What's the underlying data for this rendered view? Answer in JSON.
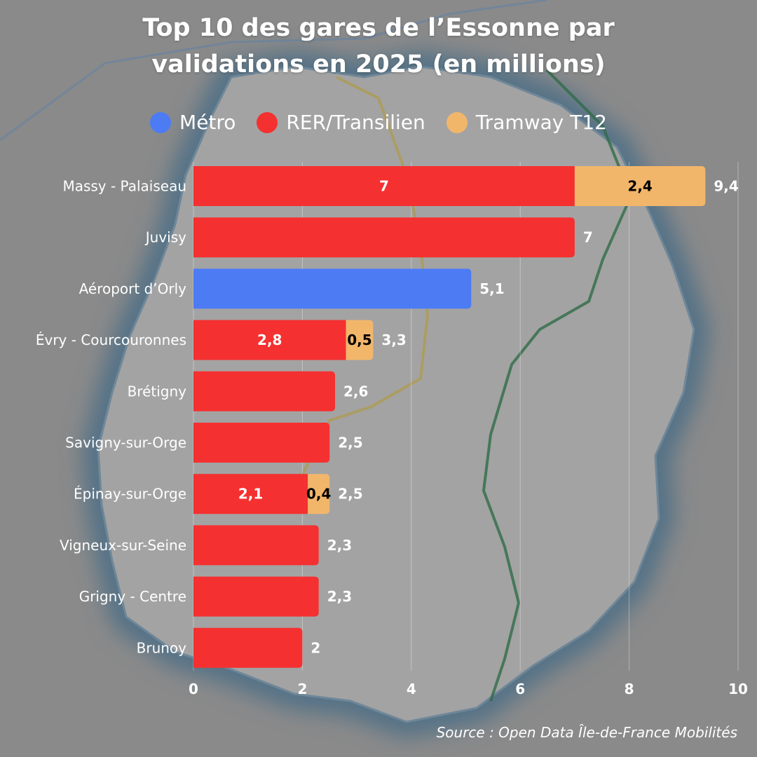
{
  "title_lines": [
    "Top 10 des gares de l’Essonne par",
    "validations en 2025 (en millions)"
  ],
  "source": "Source : Open Data Île-de-France Mobilités",
  "colors": {
    "metro": "#4c7bf4",
    "rer": "#f53030",
    "tram": "#f2b66b",
    "background": "#8a8a8a",
    "map_fill": "#a3a3a3",
    "map_glow": "#4f6f86"
  },
  "legend": [
    {
      "key": "metro",
      "label": "Métro"
    },
    {
      "key": "rer",
      "label": "RER/Transilien"
    },
    {
      "key": "tram",
      "label": "Tramway T12"
    }
  ],
  "chart_data": {
    "type": "bar",
    "orientation": "horizontal",
    "stacked": true,
    "title": "Top 10 des gares de l’Essonne par validations en 2025 (en millions)",
    "categories": [
      "Massy - Palaiseau",
      "Juvisy",
      "Aéroport d’Orly",
      "Évry - Courcouronnes",
      "Brétigny",
      "Savigny-sur-Orge",
      "Épinay-sur-Orge",
      "Vigneux-sur-Seine",
      "Grigny - Centre",
      "Brunoy"
    ],
    "series": [
      {
        "name": "Métro",
        "key": "metro",
        "values": [
          0,
          0,
          5.1,
          0,
          0,
          0,
          0,
          0,
          0,
          0
        ],
        "segment_labels": [
          "",
          "",
          "",
          "",
          "",
          "",
          "",
          "",
          "",
          ""
        ]
      },
      {
        "name": "RER/Transilien",
        "key": "rer",
        "values": [
          7,
          7,
          0,
          2.8,
          2.6,
          2.5,
          2.1,
          2.3,
          2.3,
          2
        ],
        "segment_labels": [
          "7",
          "",
          "",
          "2,8",
          "",
          "",
          "2,1",
          "",
          "",
          ""
        ]
      },
      {
        "name": "Tramway T12",
        "key": "tram",
        "values": [
          2.4,
          0,
          0,
          0.5,
          0,
          0,
          0.4,
          0,
          0,
          0
        ],
        "segment_labels": [
          "2,4",
          "",
          "",
          "0,5",
          "",
          "",
          "0,4",
          "",
          "",
          ""
        ]
      }
    ],
    "total_labels": [
      "9,4",
      "7",
      "5,1",
      "3,3",
      "2,6",
      "2,5",
      "2,5",
      "2,3",
      "2,3",
      "2"
    ],
    "xlim": [
      0,
      10
    ],
    "xticks": [
      0,
      2,
      4,
      6,
      8,
      10
    ],
    "xtick_labels": [
      "0",
      "2",
      "4",
      "6",
      "8",
      "10"
    ],
    "grid": true,
    "legend_position": "top"
  }
}
